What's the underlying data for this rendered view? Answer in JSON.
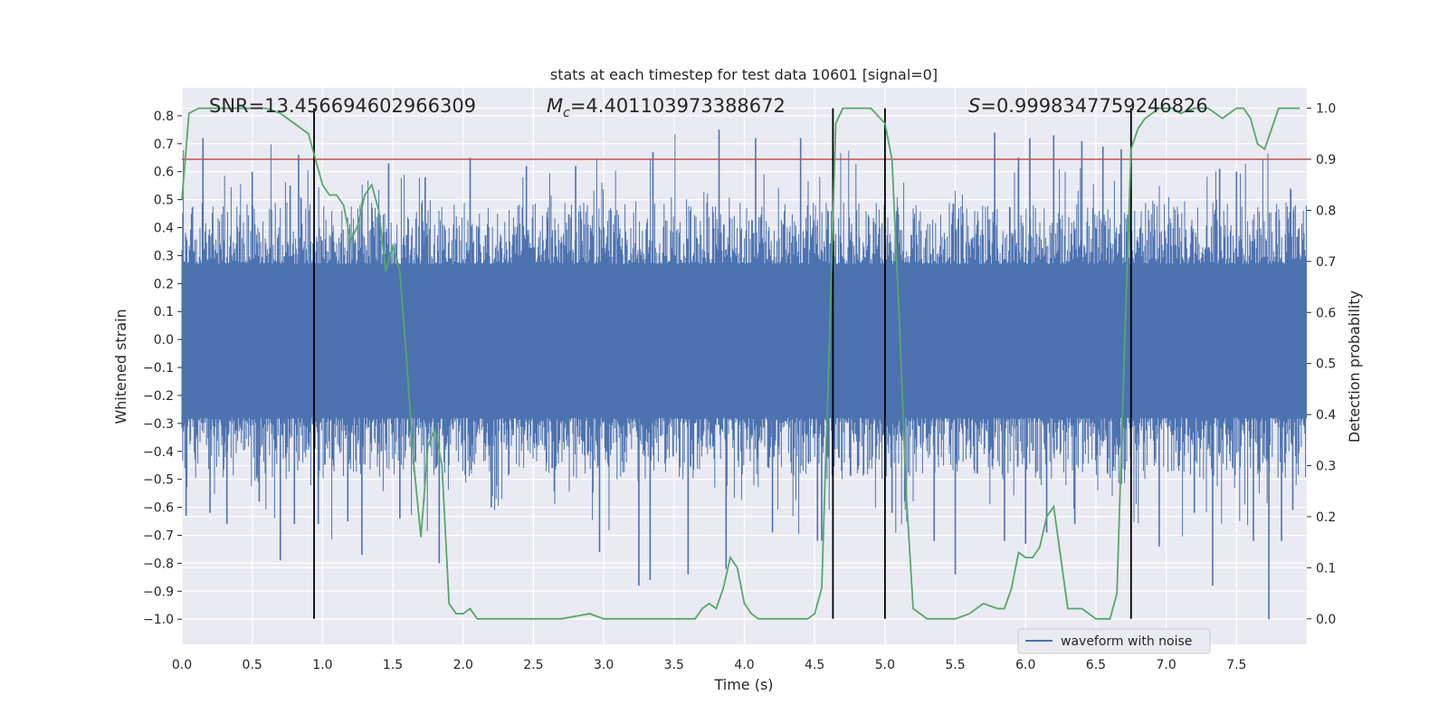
{
  "chart_data": {
    "type": "line",
    "title": "stats at each timestep for test data 10601 [signal=0]",
    "xlabel": "Time (s)",
    "ylabel": "Whitened strain",
    "y2label": "Detection probability",
    "xlim": [
      0,
      8.0
    ],
    "ylim": [
      -1.09,
      0.9
    ],
    "y2lim": [
      -0.05,
      1.04
    ],
    "xticks": [
      "0.0",
      "0.5",
      "1.0",
      "1.5",
      "2.0",
      "2.5",
      "3.0",
      "3.5",
      "4.0",
      "4.5",
      "5.0",
      "5.5",
      "6.0",
      "6.5",
      "7.0",
      "7.5"
    ],
    "yticks": [
      "0.8",
      "0.7",
      "0.6",
      "0.5",
      "0.4",
      "0.3",
      "0.2",
      "0.1",
      "0.0",
      "−0.1",
      "−0.2",
      "−0.3",
      "−0.4",
      "−0.5",
      "−0.6",
      "−0.7",
      "−0.8",
      "−0.9",
      "−1.0"
    ],
    "y2ticks": [
      "1.0",
      "0.9",
      "0.8",
      "0.7",
      "0.6",
      "0.5",
      "0.4",
      "0.3",
      "0.2",
      "0.1",
      "0.0"
    ],
    "annotations": {
      "snr": "SNR=13.456694602966309",
      "mc_symbol": "M",
      "mc_sub": "c",
      "mc_value": "=4.401103973388672",
      "s_symbol": "S",
      "s_value": "=0.9998347759246826"
    },
    "legend": {
      "label": "waveform with noise",
      "placement": "lower-right"
    },
    "threshold": {
      "axis": "y2",
      "value": 0.9,
      "color": "#c44e52"
    },
    "vlines": [
      0.94,
      4.63,
      5.0,
      6.75
    ],
    "waveform": {
      "name": "waveform with noise",
      "color": "#4c72b0",
      "x_range": [
        0,
        8.0
      ],
      "dense_band": [
        -0.28,
        0.27
      ],
      "spikes": [
        {
          "x": 0.03,
          "y": -0.63
        },
        {
          "x": 0.15,
          "y": 0.72
        },
        {
          "x": 0.2,
          "y": -0.62
        },
        {
          "x": 0.32,
          "y": -0.66
        },
        {
          "x": 0.5,
          "y": 0.6
        },
        {
          "x": 0.55,
          "y": -0.58
        },
        {
          "x": 0.7,
          "y": -0.79
        },
        {
          "x": 0.77,
          "y": 0.55
        },
        {
          "x": 0.8,
          "y": -0.66
        },
        {
          "x": 0.83,
          "y": 0.66
        },
        {
          "x": 0.97,
          "y": -0.66
        },
        {
          "x": 1.18,
          "y": -0.65
        },
        {
          "x": 1.28,
          "y": -0.77
        },
        {
          "x": 1.47,
          "y": 0.63
        },
        {
          "x": 1.55,
          "y": -0.64
        },
        {
          "x": 1.73,
          "y": 0.58
        },
        {
          "x": 1.83,
          "y": -0.8
        },
        {
          "x": 2.05,
          "y": 0.65
        },
        {
          "x": 2.2,
          "y": -0.6
        },
        {
          "x": 2.45,
          "y": 0.62
        },
        {
          "x": 2.8,
          "y": 0.62
        },
        {
          "x": 2.97,
          "y": -0.76
        },
        {
          "x": 3.25,
          "y": -0.88
        },
        {
          "x": 3.33,
          "y": -0.86
        },
        {
          "x": 3.35,
          "y": 0.67
        },
        {
          "x": 3.6,
          "y": -0.84
        },
        {
          "x": 3.82,
          "y": 0.75
        },
        {
          "x": 3.87,
          "y": -0.82
        },
        {
          "x": 4.08,
          "y": 0.72
        },
        {
          "x": 4.2,
          "y": -0.69
        },
        {
          "x": 4.4,
          "y": 0.72
        },
        {
          "x": 4.52,
          "y": -0.72
        },
        {
          "x": 4.55,
          "y": -0.72
        },
        {
          "x": 5.05,
          "y": -0.62
        },
        {
          "x": 5.35,
          "y": -0.72
        },
        {
          "x": 5.5,
          "y": -0.84
        },
        {
          "x": 5.78,
          "y": 0.74
        },
        {
          "x": 5.85,
          "y": -0.72
        },
        {
          "x": 5.95,
          "y": 0.65
        },
        {
          "x": 6.0,
          "y": -0.73
        },
        {
          "x": 6.03,
          "y": 0.72
        },
        {
          "x": 6.15,
          "y": -0.69
        },
        {
          "x": 6.2,
          "y": 0.73
        },
        {
          "x": 6.35,
          "y": -0.66
        },
        {
          "x": 6.4,
          "y": 0.71
        },
        {
          "x": 6.55,
          "y": 0.69
        },
        {
          "x": 6.68,
          "y": 0.68
        },
        {
          "x": 6.95,
          "y": -0.74
        },
        {
          "x": 7.2,
          "y": -0.62
        },
        {
          "x": 7.33,
          "y": -0.88
        },
        {
          "x": 7.38,
          "y": 0.61
        },
        {
          "x": 7.5,
          "y": 0.6
        },
        {
          "x": 7.62,
          "y": -0.72
        },
        {
          "x": 7.73,
          "y": -1.0
        },
        {
          "x": 7.82,
          "y": -0.72
        },
        {
          "x": 7.9,
          "y": -0.61
        }
      ]
    },
    "probability": {
      "color": "#55a868",
      "x": [
        0.0,
        0.05,
        0.12,
        0.2,
        0.3,
        0.4,
        0.5,
        0.6,
        0.7,
        0.8,
        0.9,
        0.95,
        1.0,
        1.05,
        1.1,
        1.15,
        1.2,
        1.25,
        1.3,
        1.35,
        1.4,
        1.45,
        1.5,
        1.55,
        1.6,
        1.65,
        1.7,
        1.75,
        1.8,
        1.85,
        1.9,
        1.95,
        2.0,
        2.05,
        2.1,
        2.2,
        2.3,
        2.5,
        2.7,
        2.9,
        3.0,
        3.2,
        3.4,
        3.6,
        3.65,
        3.7,
        3.75,
        3.8,
        3.85,
        3.9,
        3.95,
        4.0,
        4.05,
        4.1,
        4.2,
        4.3,
        4.4,
        4.45,
        4.5,
        4.55,
        4.6,
        4.65,
        4.7,
        4.75,
        4.8,
        4.9,
        5.0,
        5.05,
        5.1,
        5.15,
        5.2,
        5.25,
        5.3,
        5.4,
        5.5,
        5.6,
        5.7,
        5.8,
        5.85,
        5.9,
        5.95,
        6.0,
        6.05,
        6.1,
        6.15,
        6.2,
        6.25,
        6.3,
        6.35,
        6.4,
        6.45,
        6.5,
        6.55,
        6.6,
        6.65,
        6.7,
        6.75,
        6.8,
        6.85,
        6.9,
        6.95,
        7.0,
        7.05,
        7.1,
        7.2,
        7.3,
        7.4,
        7.45,
        7.5,
        7.55,
        7.6,
        7.65,
        7.7,
        7.75,
        7.8,
        7.85,
        7.9,
        7.95
      ],
      "y": [
        0.82,
        0.99,
        1.0,
        1.0,
        1.0,
        1.0,
        1.0,
        1.0,
        0.99,
        0.97,
        0.95,
        0.9,
        0.85,
        0.83,
        0.83,
        0.81,
        0.74,
        0.77,
        0.83,
        0.85,
        0.8,
        0.68,
        0.73,
        0.68,
        0.5,
        0.3,
        0.16,
        0.34,
        0.37,
        0.3,
        0.03,
        0.01,
        0.01,
        0.02,
        0.0,
        0.0,
        0.0,
        0.0,
        0.0,
        0.01,
        0.0,
        0.0,
        0.0,
        0.0,
        0.0,
        0.02,
        0.03,
        0.02,
        0.06,
        0.12,
        0.1,
        0.03,
        0.01,
        0.0,
        0.0,
        0.0,
        0.0,
        0.0,
        0.01,
        0.06,
        0.5,
        0.97,
        1.0,
        1.0,
        1.0,
        1.0,
        0.97,
        0.9,
        0.6,
        0.25,
        0.02,
        0.01,
        0.0,
        0.0,
        0.0,
        0.01,
        0.03,
        0.02,
        0.02,
        0.06,
        0.13,
        0.12,
        0.12,
        0.14,
        0.2,
        0.22,
        0.12,
        0.02,
        0.02,
        0.02,
        0.01,
        0.0,
        0.0,
        0.0,
        0.05,
        0.5,
        0.92,
        0.96,
        0.98,
        0.99,
        1.0,
        1.0,
        1.0,
        0.99,
        1.0,
        1.0,
        0.98,
        0.99,
        1.0,
        1.0,
        0.98,
        0.93,
        0.92,
        0.96,
        1.0,
        1.0,
        1.0,
        1.0
      ]
    }
  }
}
